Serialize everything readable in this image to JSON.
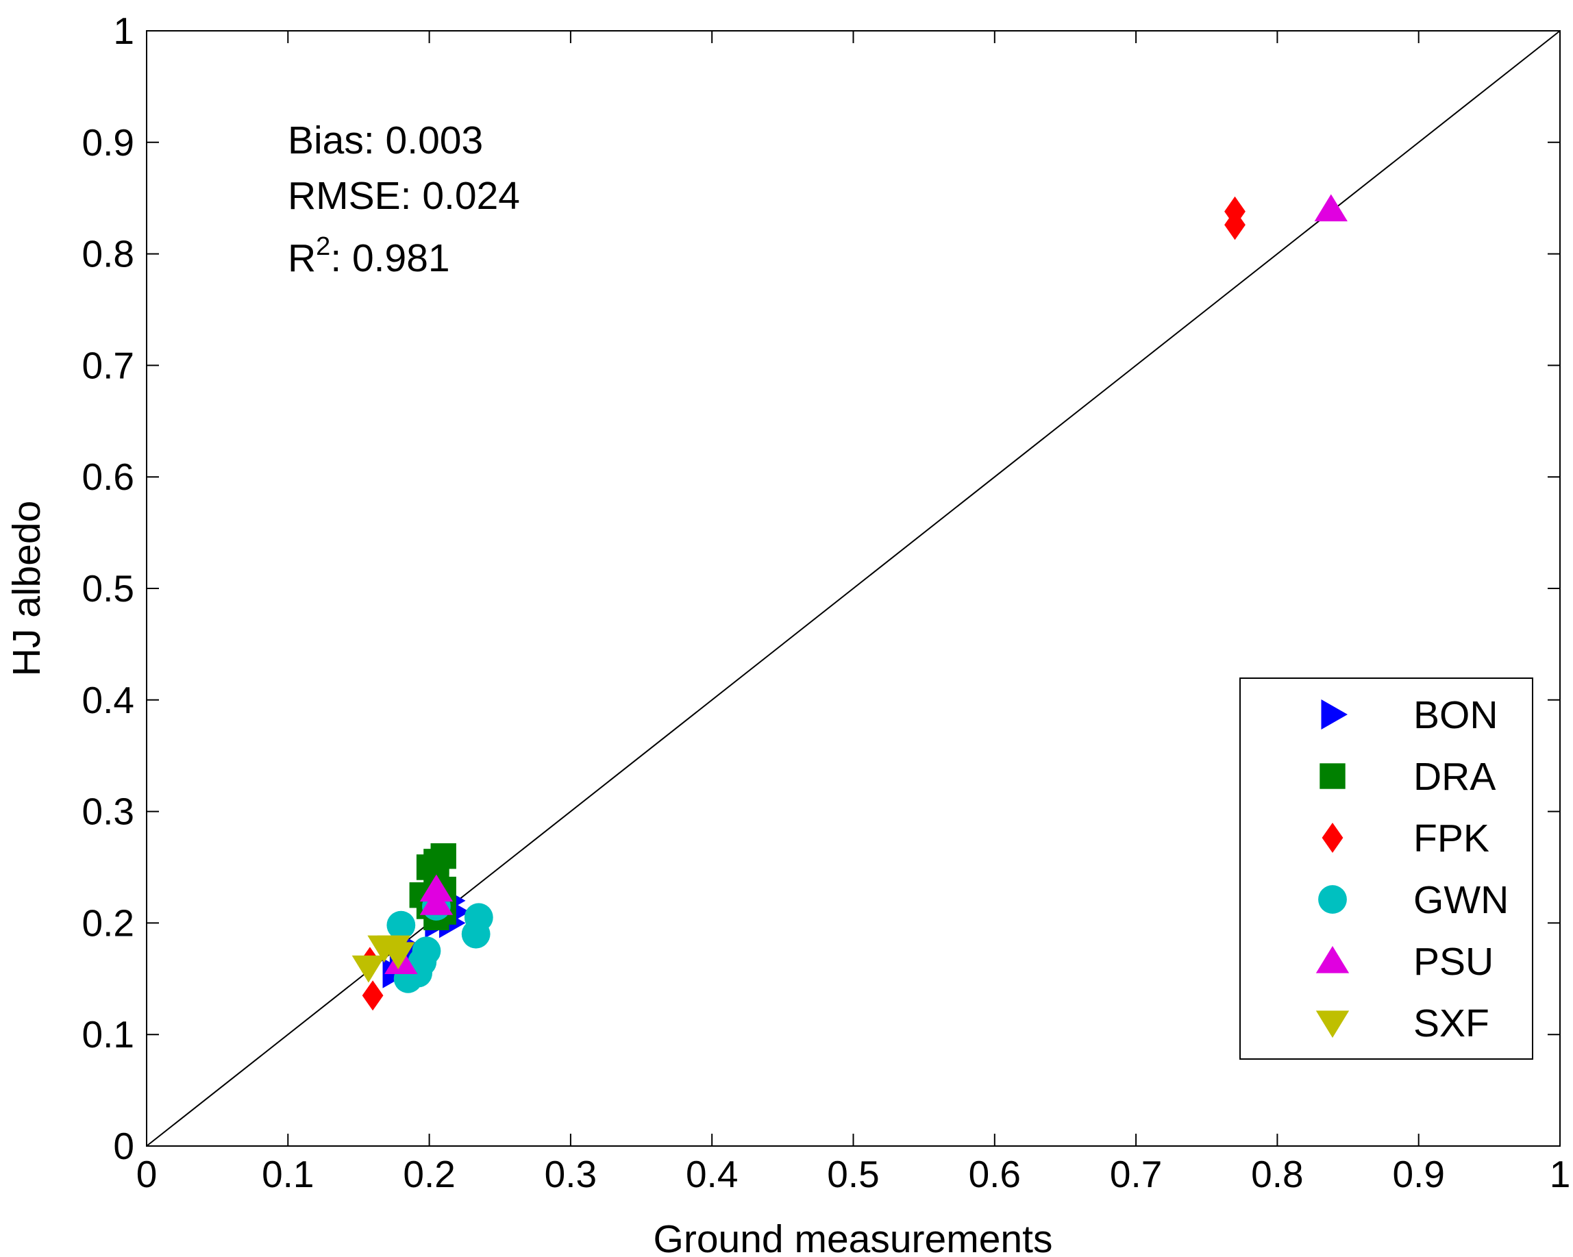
{
  "chart_data": {
    "type": "scatter",
    "title": "",
    "xlabel": "Ground measurements",
    "ylabel": "HJ albedo",
    "xlim": [
      0,
      1
    ],
    "ylim": [
      0,
      1
    ],
    "x_ticks": [
      0,
      0.1,
      0.2,
      0.3,
      0.4,
      0.5,
      0.6,
      0.7,
      0.8,
      0.9,
      1
    ],
    "y_ticks": [
      0,
      0.1,
      0.2,
      0.3,
      0.4,
      0.5,
      0.6,
      0.7,
      0.8,
      0.9,
      1
    ],
    "tick_labels": [
      "0",
      "0.1",
      "0.2",
      "0.3",
      "0.4",
      "0.5",
      "0.6",
      "0.7",
      "0.8",
      "0.9",
      "1"
    ],
    "grid": false,
    "legend_position": "lower-right",
    "reference_line": {
      "name": "1:1 line",
      "from": [
        0,
        0
      ],
      "to": [
        1,
        1
      ]
    },
    "annotations": {
      "bias": "Bias: 0.003",
      "rmse": "RMSE: 0.024",
      "r2_prefix": "R",
      "r2_sup": "2",
      "r2_value": ": 0.981"
    },
    "series": [
      {
        "name": "BON",
        "marker": "triangle-right",
        "color": "#0000ff",
        "points": [
          [
            0.175,
            0.155
          ],
          [
            0.18,
            0.165
          ],
          [
            0.19,
            0.175
          ],
          [
            0.205,
            0.2
          ],
          [
            0.21,
            0.205
          ],
          [
            0.215,
            0.2
          ],
          [
            0.218,
            0.21
          ],
          [
            0.215,
            0.22
          ]
        ]
      },
      {
        "name": "DRA",
        "marker": "square",
        "color": "#008000",
        "points": [
          [
            0.205,
            0.255
          ],
          [
            0.21,
            0.26
          ],
          [
            0.2,
            0.25
          ],
          [
            0.205,
            0.24
          ],
          [
            0.21,
            0.23
          ],
          [
            0.195,
            0.225
          ],
          [
            0.2,
            0.215
          ],
          [
            0.21,
            0.21
          ],
          [
            0.205,
            0.205
          ]
        ]
      },
      {
        "name": "FPK",
        "marker": "diamond",
        "color": "#ff0000",
        "points": [
          [
            0.16,
            0.135
          ],
          [
            0.158,
            0.165
          ],
          [
            0.77,
            0.838
          ],
          [
            0.77,
            0.826
          ]
        ]
      },
      {
        "name": "GWN",
        "marker": "circle",
        "color": "#00c0c0",
        "points": [
          [
            0.18,
            0.198
          ],
          [
            0.198,
            0.175
          ],
          [
            0.192,
            0.155
          ],
          [
            0.185,
            0.15
          ],
          [
            0.205,
            0.215
          ],
          [
            0.233,
            0.19
          ],
          [
            0.235,
            0.205
          ],
          [
            0.195,
            0.165
          ]
        ]
      },
      {
        "name": "PSU",
        "marker": "triangle-up",
        "color": "#e000e0",
        "points": [
          [
            0.205,
            0.23
          ],
          [
            0.205,
            0.218
          ],
          [
            0.18,
            0.165
          ],
          [
            0.838,
            0.84
          ]
        ]
      },
      {
        "name": "SXF",
        "marker": "triangle-down",
        "color": "#bfbf00",
        "points": [
          [
            0.157,
            0.16
          ],
          [
            0.168,
            0.178
          ],
          [
            0.178,
            0.172
          ],
          [
            0.175,
            0.178
          ]
        ]
      }
    ]
  }
}
